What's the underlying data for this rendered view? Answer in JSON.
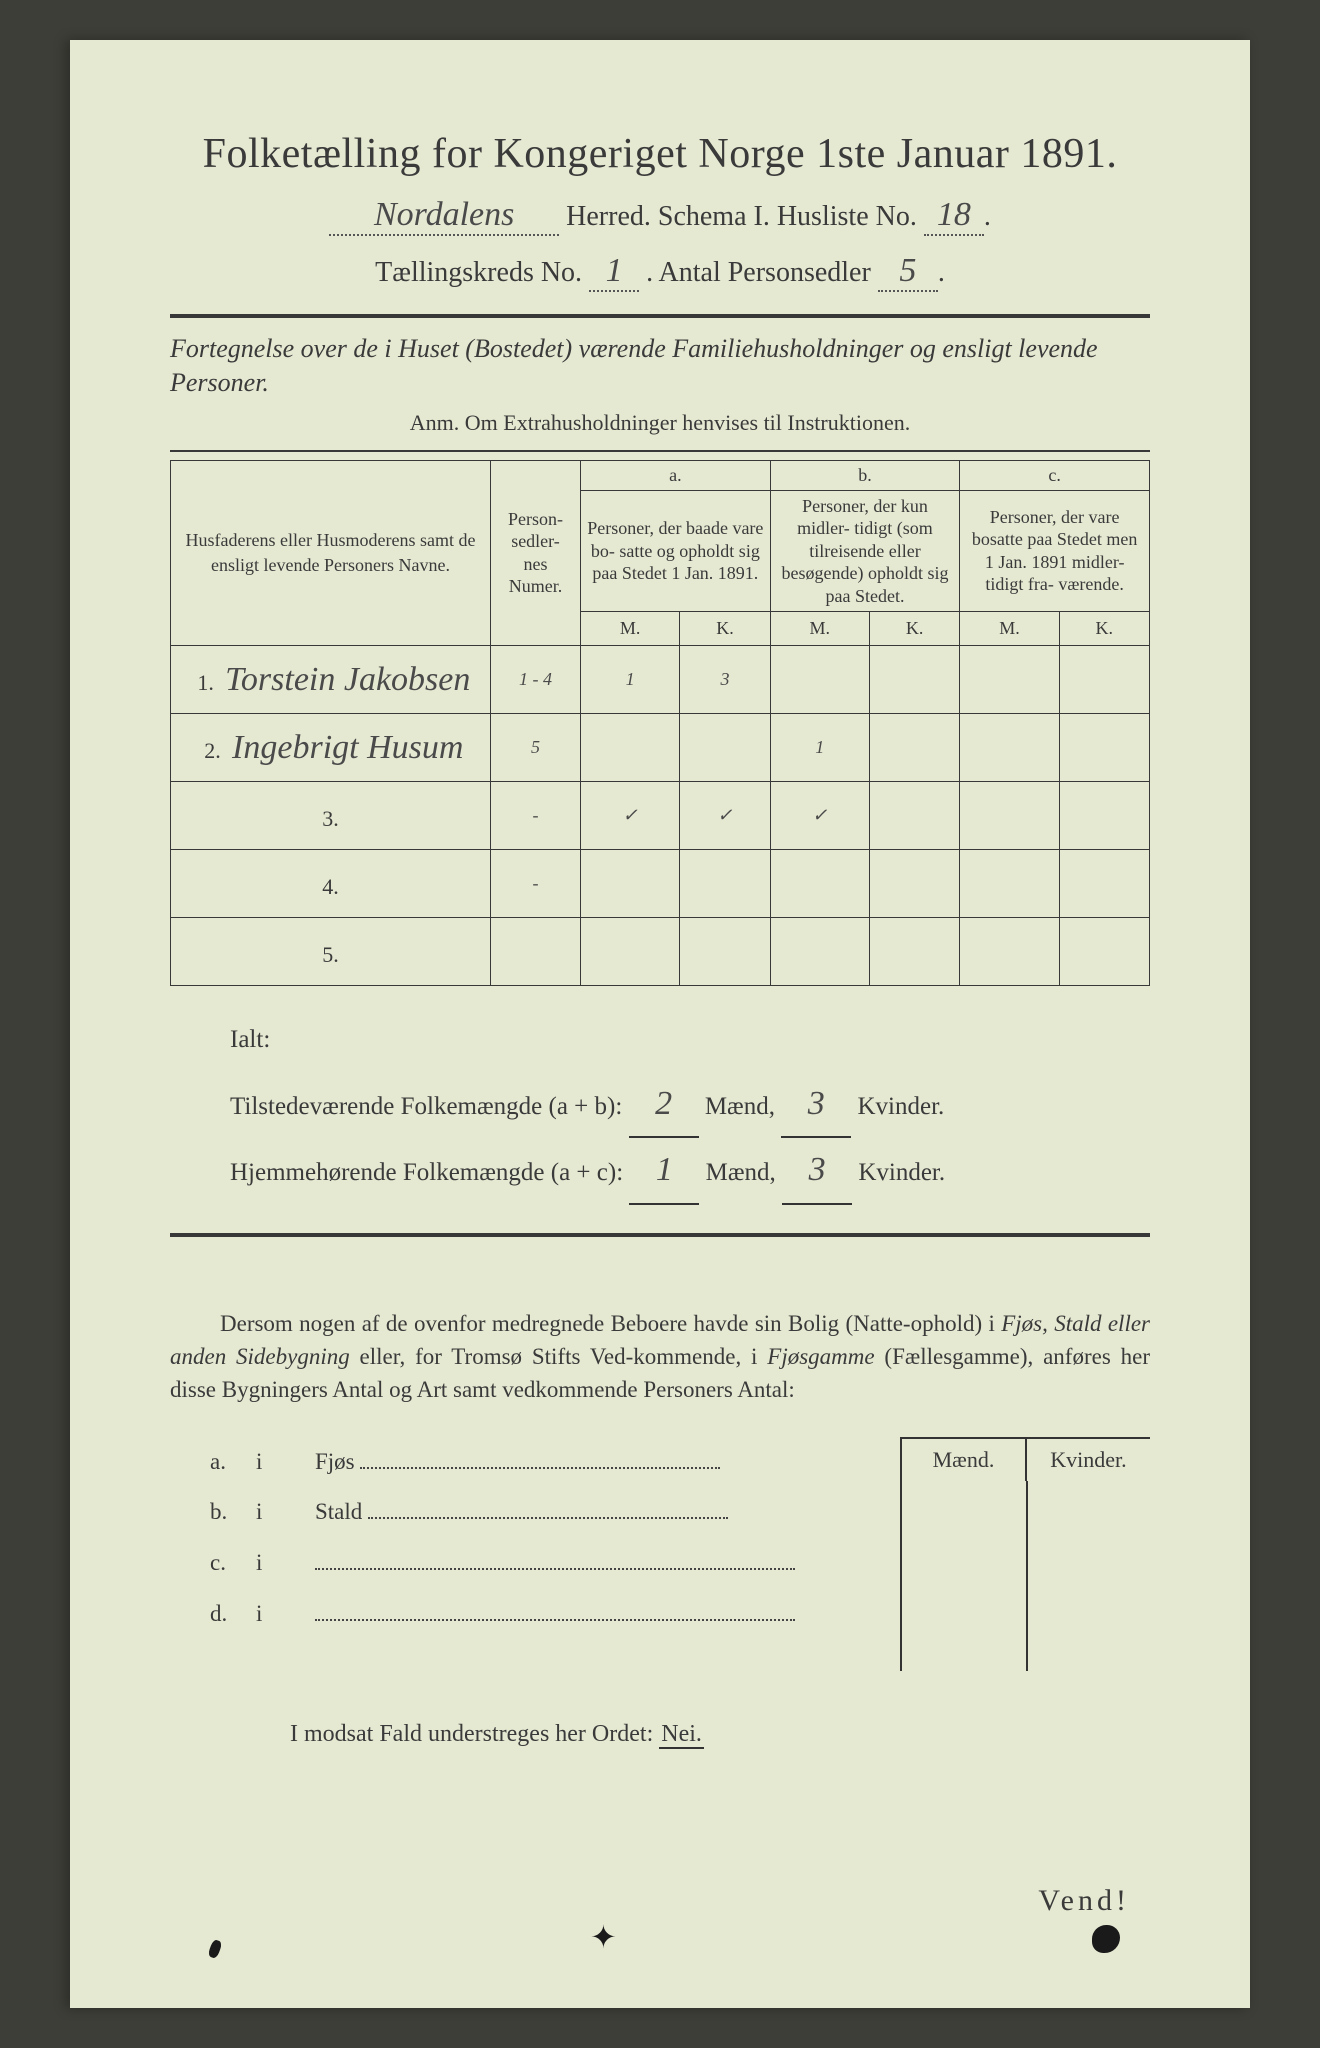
{
  "header": {
    "title": "Folketælling for Kongeriget Norge 1ste Januar 1891.",
    "herred_hand": "Nordalens",
    "line2_mid": "Herred.   Schema I.   Husliste No.",
    "husliste_no": "18",
    "line3_pre": "Tællingskreds No.",
    "kreds_no": "1",
    "line3_mid": ".    Antal Personsedler",
    "personsedler": "5"
  },
  "intro": {
    "line1": "Fortegnelse over de i Huset (Bostedet) værende Familiehusholdninger og ensligt levende Personer.",
    "line2": "Anm.  Om Extrahusholdninger henvises til Instruktionen."
  },
  "table": {
    "col_name": "Husfaderens eller Husmoderens samt de ensligt levende Personers Navne.",
    "col_num": "Person-\nsedler-\nnes\nNumer.",
    "a_label": "a.",
    "a_head": "Personer, der baade vare bo-\nsatte og opholdt sig paa Stedet 1 Jan. 1891.",
    "b_label": "b.",
    "b_head": "Personer, der kun midler-\ntidigt (som tilreisende eller besøgende) opholdt sig paa Stedet.",
    "c_label": "c.",
    "c_head": "Personer, der vare bosatte paa Stedet men 1 Jan. 1891 midler-\ntidigt fra-\nværende.",
    "M": "M.",
    "K": "K.",
    "rows": [
      {
        "n": "1.",
        "name": "Torstein Jakobsen",
        "num": "1 - 4",
        "aM": "1",
        "aK": "3",
        "bM": "",
        "bK": "",
        "cM": "",
        "cK": ""
      },
      {
        "n": "2.",
        "name": "Ingebrigt Husum",
        "num": "5",
        "aM": "",
        "aK": "",
        "bM": "1",
        "bK": "",
        "cM": "",
        "cK": ""
      },
      {
        "n": "3.",
        "name": "",
        "num": "-",
        "aM": "✓",
        "aK": "✓",
        "bM": "✓",
        "bK": "",
        "cM": "",
        "cK": ""
      },
      {
        "n": "4.",
        "name": "",
        "num": "-",
        "aM": "",
        "aK": "",
        "bM": "",
        "bK": "",
        "cM": "",
        "cK": ""
      },
      {
        "n": "5.",
        "name": "",
        "num": "",
        "aM": "",
        "aK": "",
        "bM": "",
        "bK": "",
        "cM": "",
        "cK": ""
      }
    ]
  },
  "totals": {
    "ialt": "Ialt:",
    "line1_pre": "Tilstedeværende Folkemængde (a + b):",
    "line2_pre": "Hjemmehørende Folkemængde (a + c):",
    "maend": "Mænd,",
    "kvinder": "Kvinder.",
    "ab_m": "2",
    "ab_k": "3",
    "ac_m": "1",
    "ac_k": "3"
  },
  "para": {
    "text_pre": "Dersom nogen af de ovenfor medregnede Beboere havde sin Bolig (Natte-ophold) i ",
    "it1": "Fjøs, Stald eller anden Sidebygning",
    "mid": " eller, for Tromsø Stifts Ved-kommende, i ",
    "it2": "Fjøsgamme",
    "post": " (Fællesgamme), anføres her disse Bygningers Antal og Art samt vedkommende Personers Antal:"
  },
  "box": {
    "maend": "Mænd.",
    "kvinder": "Kvinder.",
    "items": [
      {
        "a": "a.",
        "i": "i",
        "label": "Fjøs"
      },
      {
        "a": "b.",
        "i": "i",
        "label": "Stald"
      },
      {
        "a": "c.",
        "i": "i",
        "label": ""
      },
      {
        "a": "d.",
        "i": "i",
        "label": ""
      }
    ]
  },
  "nei": {
    "text": "I modsat Fald understreges her Ordet: ",
    "word": "Nei."
  },
  "vend": "Vend!"
}
